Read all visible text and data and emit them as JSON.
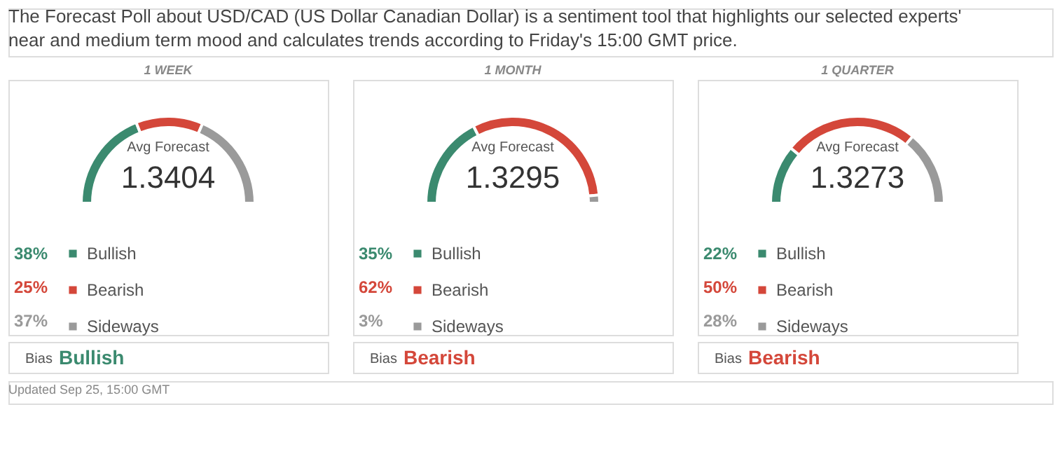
{
  "chart_data": [
    {
      "type": "other",
      "title": "The Forecast Poll about USD/CAD (US Dollar Canadian Dollar) is a sentiment tool that highlights our selected experts' near and medium term mood and calculates trends according to Friday's 15:00 GMT price.",
      "annotations": [
        "Updated Sep 25, 15:00 GMT"
      ]
    },
    {
      "type": "donut",
      "title": "1 WEEK",
      "categories": [
        "Bullish",
        "Bearish",
        "Sideways"
      ],
      "values": [
        38,
        25,
        37
      ],
      "colors": [
        "#3b8a6f",
        "#d4473a",
        "#9a9a9a"
      ],
      "value_labels": [
        "38%",
        "25%",
        "37%"
      ],
      "legend": "bottom",
      "annotations": [
        "Avg Forecast",
        "1.3404",
        "Bias",
        "Bullish"
      ]
    },
    {
      "type": "donut",
      "title": "1 MONTH",
      "categories": [
        "Bullish",
        "Bearish",
        "Sideways"
      ],
      "values": [
        35,
        62,
        3
      ],
      "colors": [
        "#3b8a6f",
        "#d4473a",
        "#9a9a9a"
      ],
      "value_labels": [
        "35%",
        "62%",
        "3%"
      ],
      "legend": "bottom",
      "annotations": [
        "Avg Forecast",
        "1.3295",
        "Bias",
        "Bearish"
      ]
    },
    {
      "type": "donut",
      "title": "1 QUARTER",
      "categories": [
        "Bullish",
        "Bearish",
        "Sideways"
      ],
      "values": [
        22,
        50,
        28
      ],
      "colors": [
        "#3b8a6f",
        "#d4473a",
        "#9a9a9a"
      ],
      "value_labels": [
        "22%",
        "50%",
        "28%"
      ],
      "legend": "bottom",
      "annotations": [
        "Avg Forecast",
        "1.3273",
        "Bias",
        "Bearish"
      ]
    }
  ]
}
